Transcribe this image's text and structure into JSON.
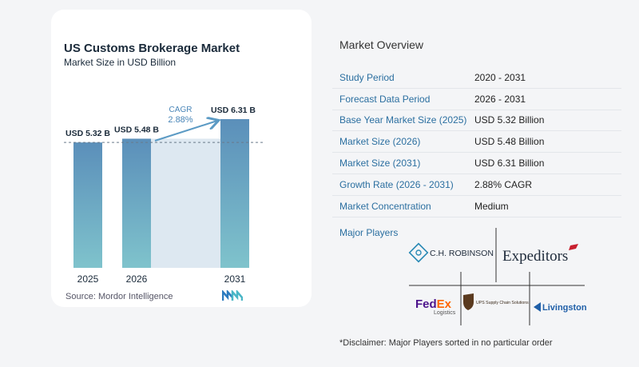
{
  "chart": {
    "title": "US Customs Brokerage Market",
    "subtitle": "Market Size in USD Billion",
    "source": "Source:  Mordor Intelligence",
    "cagr_label": "CAGR",
    "cagr_value": "2.88%"
  },
  "chart_data": {
    "type": "bar",
    "categories": [
      "2025",
      "2026",
      "2031"
    ],
    "values": [
      5.32,
      5.48,
      6.31
    ],
    "data_labels": [
      "USD 5.32 B",
      "USD 5.48 B",
      "USD 6.31 B"
    ],
    "title": "US Customs Brokerage Market",
    "subtitle": "Market Size in USD Billion",
    "xlabel": "",
    "ylabel": "",
    "colors": {
      "bar_top": "#5b8fba",
      "bar_bottom": "#7fc3cc",
      "band": "#dde8f1",
      "arrow": "#5b9ac4"
    }
  },
  "overview": {
    "title": "Market Overview",
    "rows": [
      {
        "label": "Study Period",
        "value": "2020 - 2031"
      },
      {
        "label": "Forecast Data Period",
        "value": "2026 - 2031"
      },
      {
        "label": "Base Year Market Size (2025)",
        "value": "USD 5.32 Billion"
      },
      {
        "label": "Market Size (2026)",
        "value": "USD 5.48 Billion"
      },
      {
        "label": "Market Size (2031)",
        "value": "USD 6.31 Billion"
      },
      {
        "label": "Growth Rate (2026 - 2031)",
        "value": "2.88% CAGR"
      },
      {
        "label": "Market Concentration",
        "value": "Medium"
      }
    ]
  },
  "players": {
    "title": "Major Players",
    "logos": {
      "chr": "C.H. ROBINSON",
      "expeditors": "Expeditors",
      "fedex_a": "Fed",
      "fedex_b": "Ex",
      "fedex_sub": "Logistics",
      "ups": "UPS Supply Chain Solutions",
      "livingston": "Livingston"
    }
  },
  "disclaimer": "*Disclaimer: Major Players sorted in no particular order"
}
